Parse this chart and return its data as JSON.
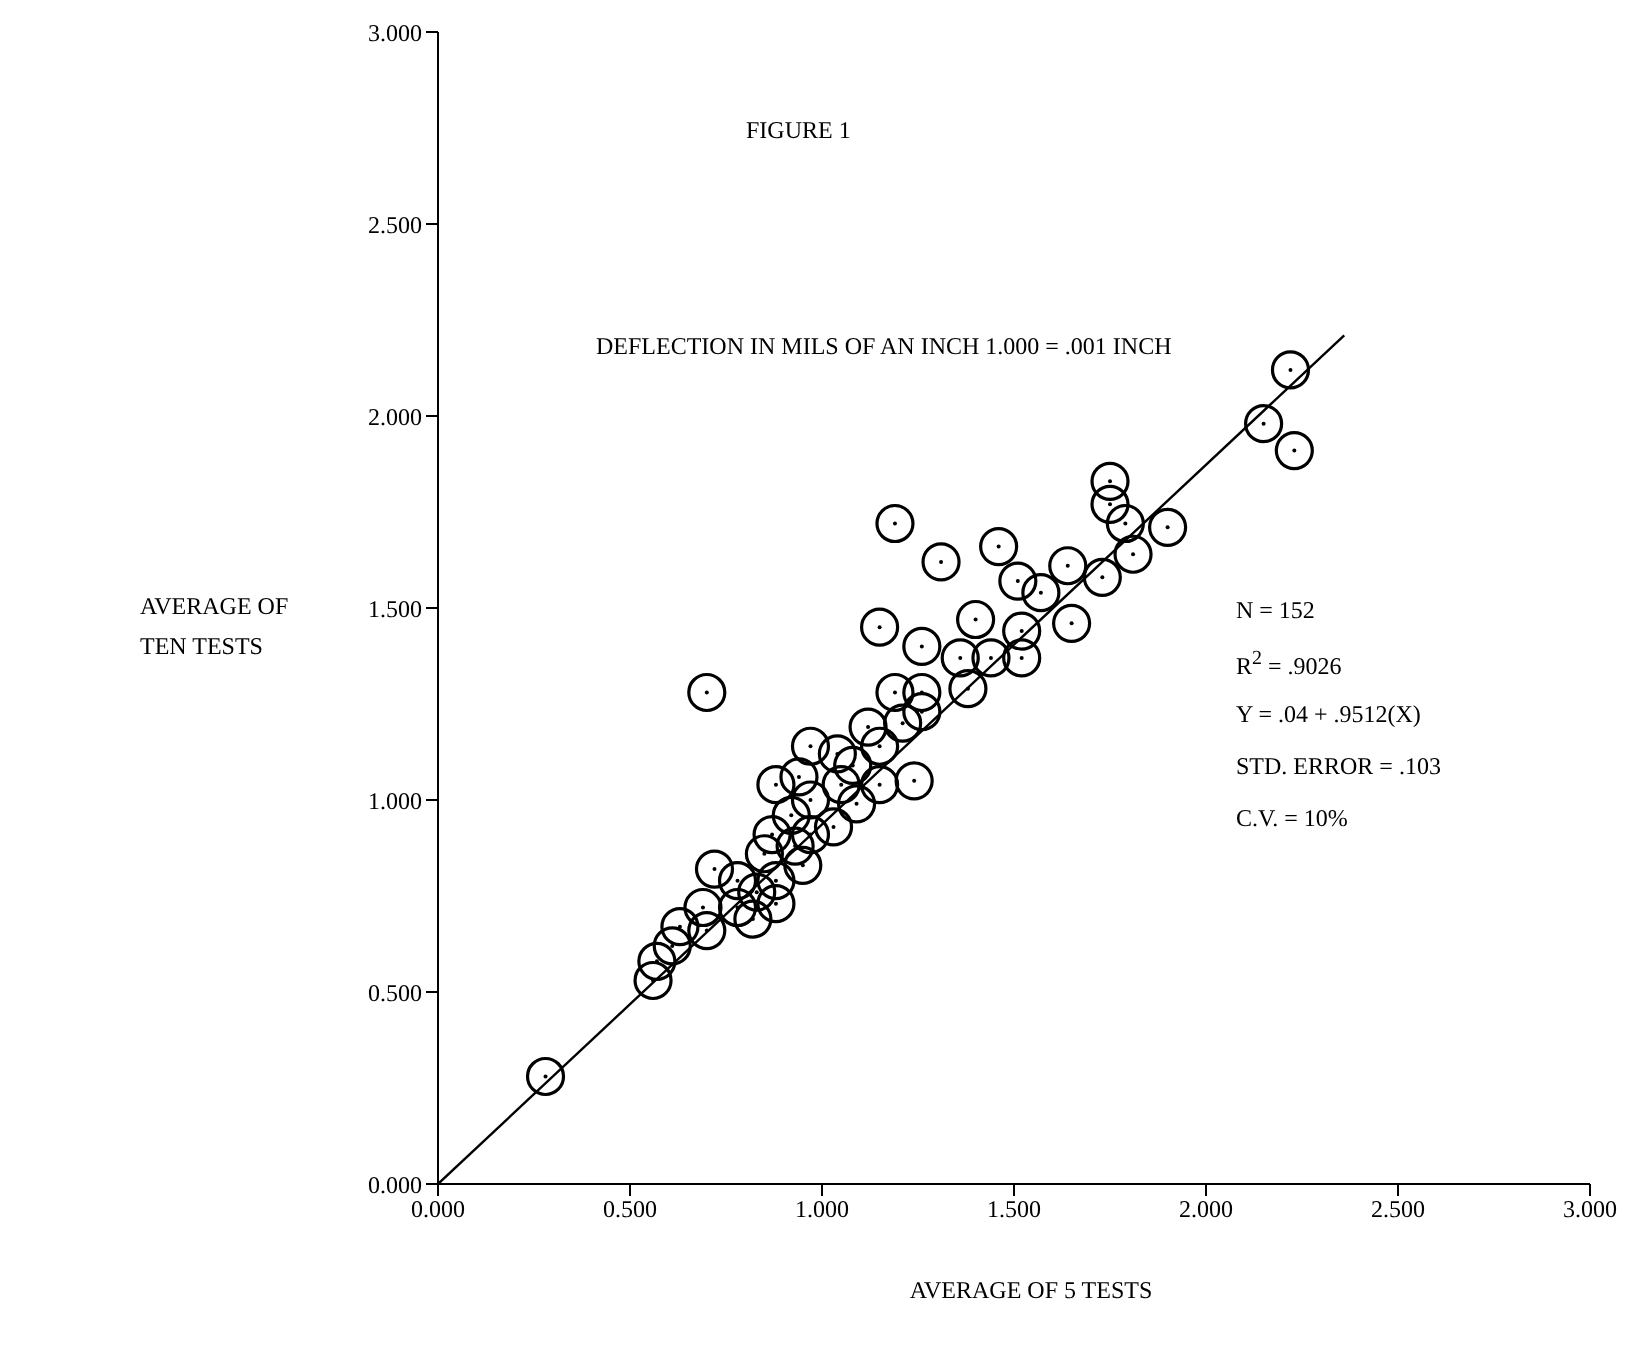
{
  "chart_data": {
    "type": "scatter",
    "title": "FIGURE 1",
    "xlabel": "AVERAGE OF 5 TESTS",
    "ylabel": "AVERAGE OF TEN TESTS",
    "annotations": [
      "DEFLECTION IN MILS OF AN INCH 1.000 = .001 INCH",
      "N = 152",
      "R$^{2}$ = .9026",
      "Y = .04 + .9512(X)",
      "STD. ERROR = .103",
      "C.V. = 10%"
    ],
    "xlim": [
      0,
      3
    ],
    "ylim": [
      0,
      3
    ],
    "xticks": [
      {
        "value": 0,
        "label": "0.000"
      },
      {
        "value": 0.5,
        "label": "0.500"
      },
      {
        "value": 1,
        "label": "1.000"
      },
      {
        "value": 1.5,
        "label": "1.500"
      },
      {
        "value": 2,
        "label": "2.000"
      },
      {
        "value": 2.5,
        "label": "2.500"
      },
      {
        "value": 3,
        "label": "3.000"
      }
    ],
    "yticks": [
      {
        "value": 0,
        "label": "0.000"
      },
      {
        "value": 0.5,
        "label": "0.500"
      },
      {
        "value": 1,
        "label": "1.000"
      },
      {
        "value": 1.5,
        "label": "1.500"
      },
      {
        "value": 2,
        "label": "2.000"
      },
      {
        "value": 2.5,
        "label": "2.500"
      },
      {
        "value": 3,
        "label": "3.000"
      }
    ],
    "grid": false,
    "marker": "circle",
    "series": [
      {
        "color": "#000000",
        "x": [
          0.28,
          0.56,
          0.57,
          0.61,
          0.63,
          0.69,
          0.7,
          0.7,
          0.72,
          0.78,
          0.78,
          0.82,
          0.83,
          0.85,
          0.87,
          0.88,
          0.88,
          0.88,
          0.92,
          0.93,
          0.94,
          0.95,
          0.97,
          0.97,
          0.97,
          1.03,
          1.04,
          1.05,
          1.08,
          1.09,
          1.12,
          1.15,
          1.15,
          1.15,
          1.19,
          1.19,
          1.21,
          1.24,
          1.26,
          1.26,
          1.26,
          1.31,
          1.36,
          1.38,
          1.4,
          1.44,
          1.46,
          1.51,
          1.52,
          1.52,
          1.57,
          1.64,
          1.65,
          1.73,
          1.75,
          1.75,
          1.79,
          1.81,
          1.9,
          2.15,
          2.22,
          2.23
        ],
        "values": [
          0.28,
          0.53,
          0.58,
          0.62,
          0.67,
          0.72,
          0.66,
          1.28,
          0.82,
          0.79,
          0.72,
          0.69,
          0.76,
          0.86,
          0.91,
          0.73,
          0.79,
          1.04,
          0.96,
          0.88,
          1.06,
          0.83,
          1.0,
          0.91,
          1.14,
          0.93,
          1.12,
          1.04,
          1.09,
          0.99,
          1.19,
          1.14,
          1.04,
          1.45,
          1.72,
          1.28,
          1.2,
          1.05,
          1.4,
          1.28,
          1.23,
          1.62,
          1.37,
          1.29,
          1.47,
          1.37,
          1.66,
          1.57,
          1.44,
          1.37,
          1.54,
          1.61,
          1.46,
          1.58,
          1.77,
          1.83,
          1.72,
          1.64,
          1.71,
          1.98,
          2.12,
          1.91
        ]
      },
      {
        "type": "line",
        "marker": "none",
        "color": "#000000",
        "x": [
          0,
          2.36
        ],
        "values": [
          0,
          2.21
        ]
      }
    ]
  }
}
